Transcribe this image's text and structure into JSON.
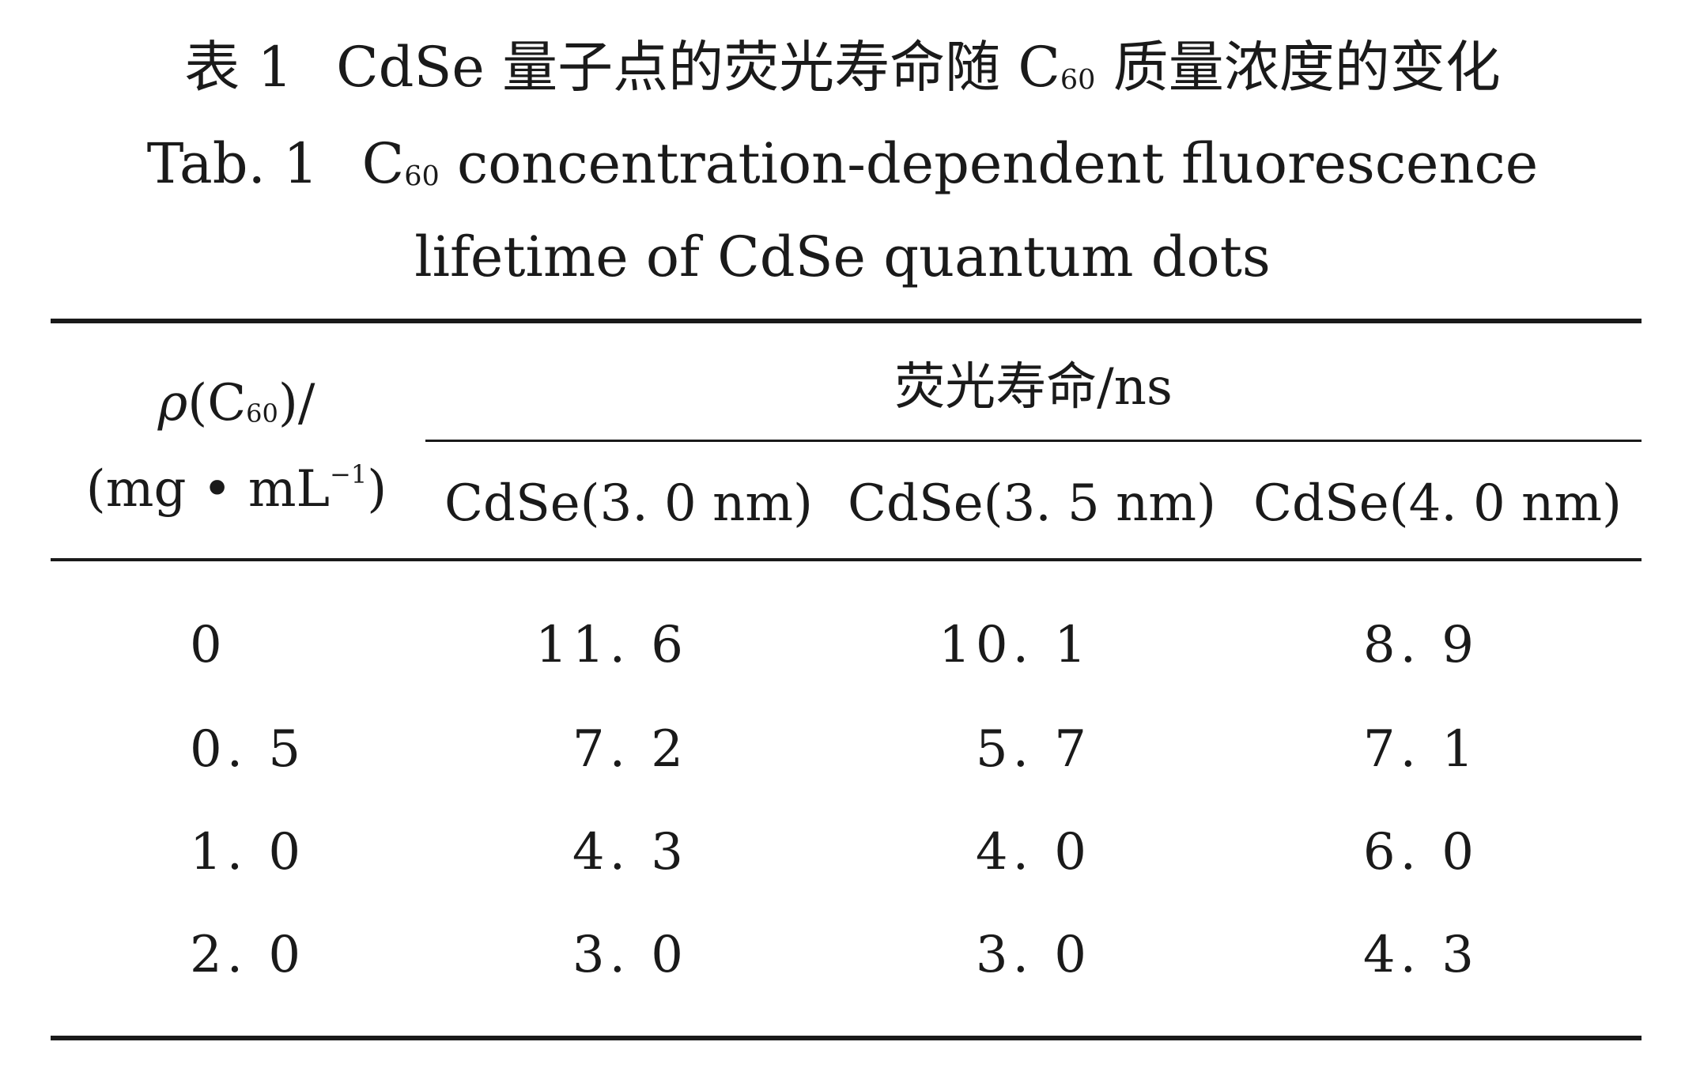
{
  "caption": {
    "cn_label": "表 1",
    "cn_text_before": "CdSe 量子点的荧光寿命随 C",
    "cn_sub": "60",
    "cn_text_after": " 质量浓度的变化",
    "en_label": "Tab. 1",
    "en_c": "C",
    "en_sub": "60",
    "en_line1_rest": " concentration-dependent fluorescence",
    "en_line2": "lifetime of CdSe quantum dots"
  },
  "table": {
    "stub_header": {
      "rho": "ρ",
      "open": "(C",
      "sub": "60",
      "close": ")/",
      "unit_open": "(mg • mL",
      "unit_sup": "−1",
      "unit_close": ")"
    },
    "spanning_header": "荧光寿命/ns",
    "column_headers": [
      "CdSe(3. 0 nm)",
      "CdSe(3. 5 nm)",
      "CdSe(4. 0 nm)"
    ],
    "rows": [
      {
        "c60": "0",
        "v1": "11. 6",
        "v2": "10. 1",
        "v3": "8. 9"
      },
      {
        "c60": "0. 5",
        "v1": "7. 2",
        "v2": "5. 7",
        "v3": "7. 1"
      },
      {
        "c60": "1. 0",
        "v1": "4. 3",
        "v2": "4. 0",
        "v3": "6. 0"
      },
      {
        "c60": "2. 0",
        "v1": "3. 0",
        "v2": "3. 0",
        "v3": "4. 3"
      }
    ]
  }
}
